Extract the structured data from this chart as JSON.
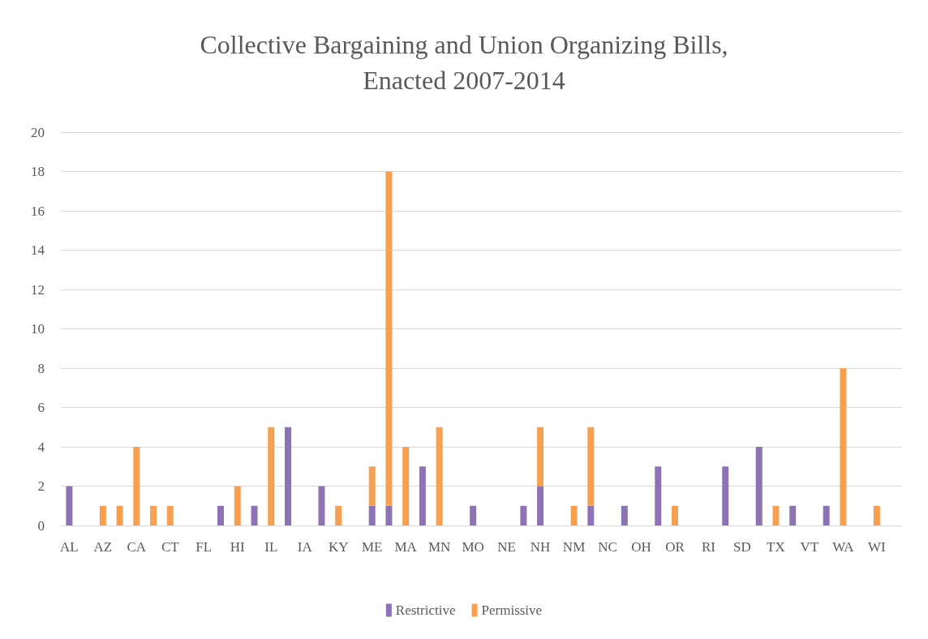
{
  "chart_data": {
    "type": "bar",
    "title": "Collective Bargaining and Union Organizing Bills,\nEnacted 2007-2014",
    "stacked": true,
    "grid": "y",
    "legend": "bottom",
    "categories": [
      "AL",
      null,
      "AZ",
      null,
      "CA",
      null,
      "CT",
      null,
      "FL",
      null,
      "HI",
      null,
      "IL",
      null,
      "IA",
      null,
      "KY",
      null,
      "ME",
      null,
      "MA",
      null,
      "MN",
      null,
      "MO",
      null,
      "NE",
      null,
      "NH",
      null,
      "NM",
      null,
      "NC",
      null,
      "OH",
      null,
      "OR",
      null,
      "RI",
      null,
      "SD",
      null,
      "TX",
      null,
      "VT",
      null,
      "WA",
      null,
      "WI",
      null
    ],
    "series": [
      {
        "name": "Restrictive",
        "color": "#8e72b6",
        "values": [
          2,
          0,
          0,
          0,
          0,
          0,
          0,
          0,
          0,
          1,
          0,
          1,
          0,
          5,
          0,
          2,
          0,
          0,
          1,
          1,
          0,
          3,
          0,
          0,
          1,
          0,
          0,
          1,
          2,
          0,
          0,
          1,
          0,
          1,
          0,
          3,
          0,
          0,
          0,
          3,
          0,
          4,
          0,
          1,
          0,
          1,
          0,
          0,
          0,
          0
        ]
      },
      {
        "name": "Permissive",
        "color": "#f9a050",
        "values": [
          0,
          0,
          1,
          1,
          4,
          1,
          1,
          0,
          0,
          0,
          2,
          0,
          5,
          0,
          0,
          0,
          1,
          0,
          2,
          17,
          4,
          0,
          5,
          0,
          0,
          0,
          0,
          0,
          3,
          0,
          1,
          4,
          0,
          0,
          0,
          0,
          1,
          0,
          0,
          0,
          0,
          0,
          1,
          0,
          0,
          0,
          8,
          0,
          1,
          0
        ]
      }
    ],
    "ylim": [
      0,
      20
    ],
    "yticks": [
      0,
      2,
      4,
      6,
      8,
      10,
      12,
      14,
      16,
      18,
      20
    ]
  }
}
